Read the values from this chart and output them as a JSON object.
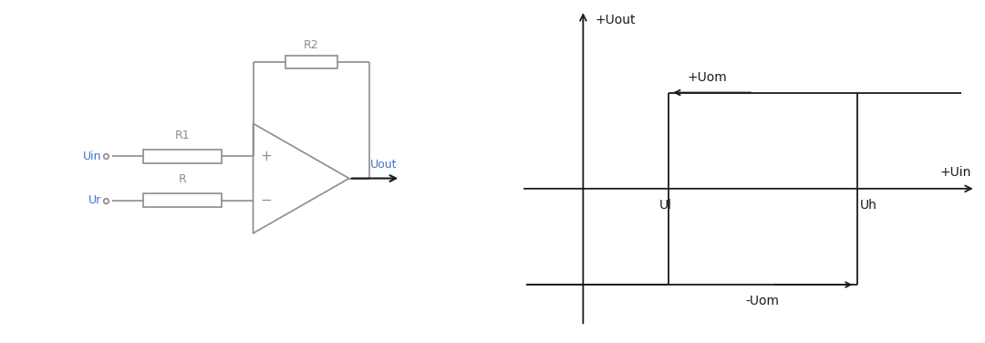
{
  "bg_color": "#ffffff",
  "circuit_color": "#8c8c8c",
  "text_color_blue": "#4472c4",
  "text_color_dark": "#1a1a1a",
  "graph_color": "#1a1a1a",
  "circuit": {
    "uin_label": "Uin",
    "ur_label": "Ur",
    "r1_label": "R1",
    "r_label": "R",
    "r2_label": "R2",
    "uout_label": "Uout"
  },
  "graph": {
    "uout_label": "+Uout",
    "uin_label": "+Uin",
    "uom_pos_label": "+Uom",
    "uom_neg_label": "-Uom",
    "ul_label": "Ul",
    "uh_label": "Uh"
  }
}
